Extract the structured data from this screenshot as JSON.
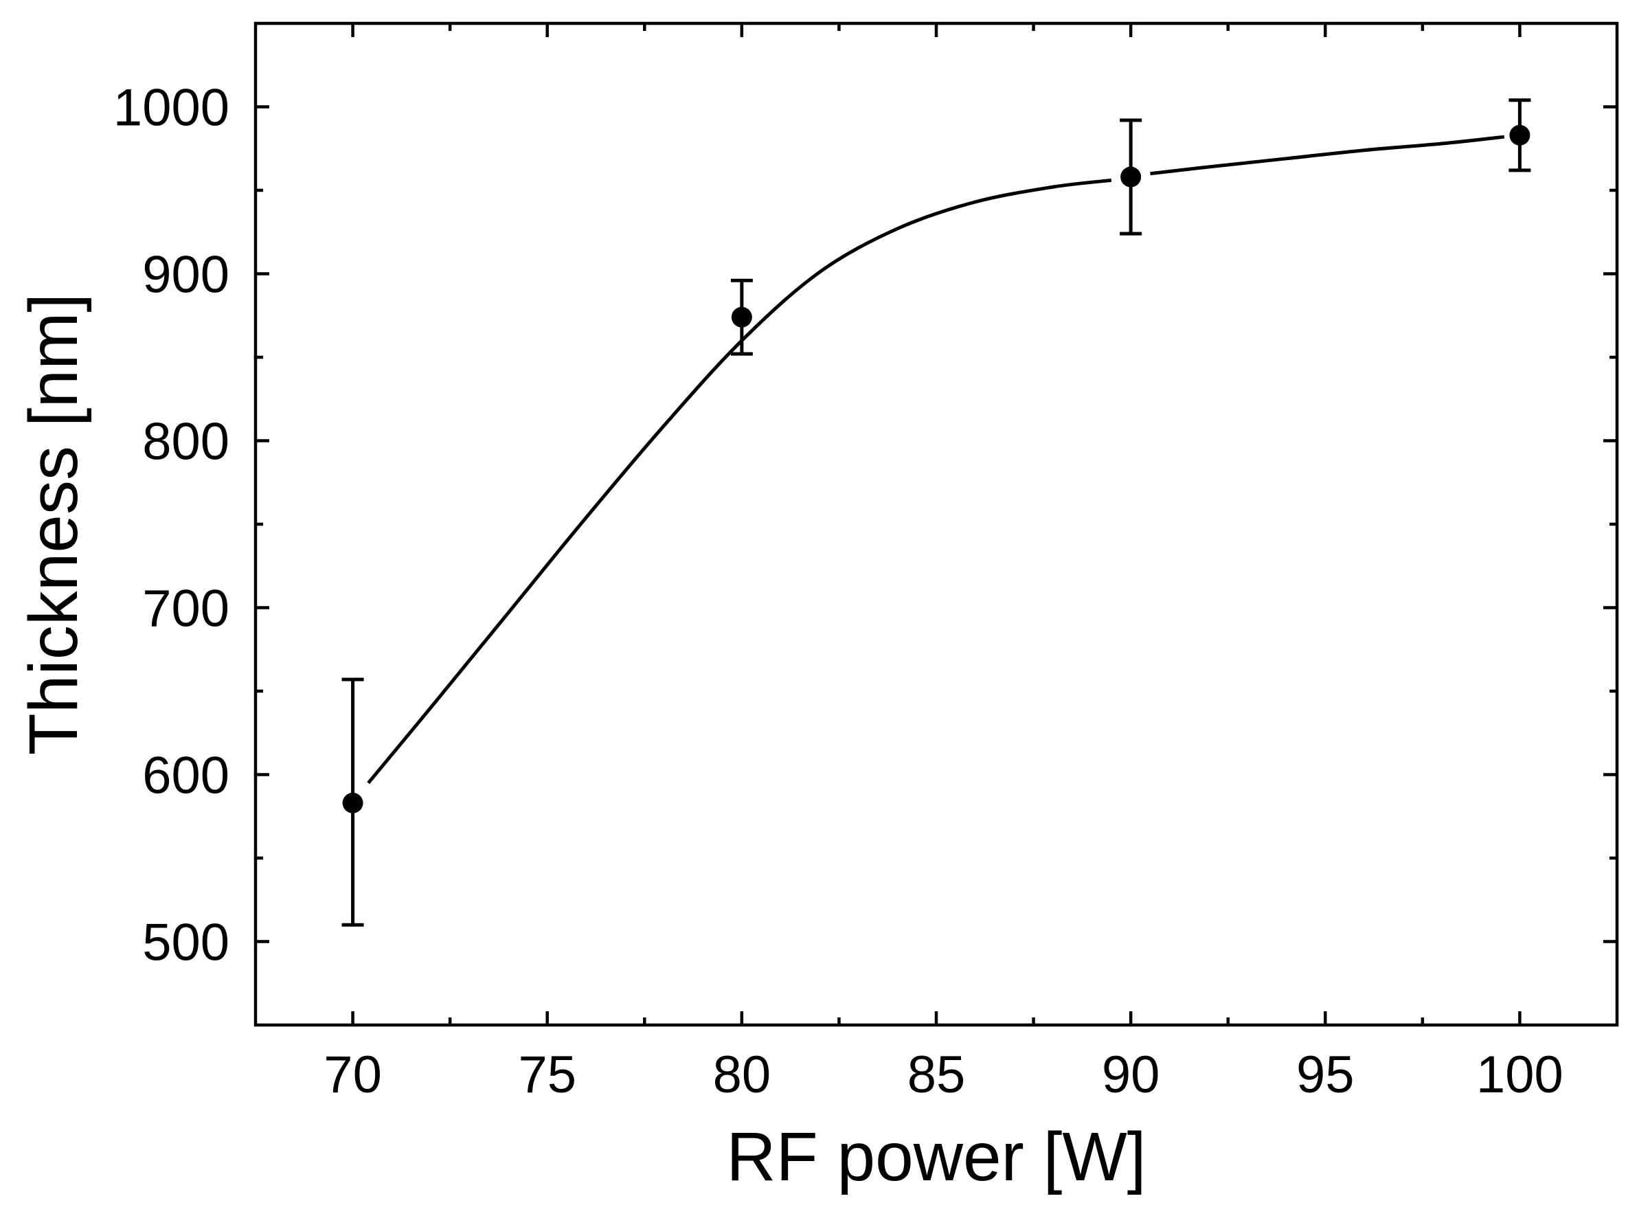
{
  "chart_data": {
    "type": "scatter",
    "title": "",
    "xlabel": "RF power [W]",
    "ylabel": "Thickness [nm]",
    "xlim": [
      67.5,
      102.5
    ],
    "ylim": [
      450,
      1050
    ],
    "x_major_ticks": [
      70,
      75,
      80,
      85,
      90,
      95,
      100
    ],
    "x_minor_ticks": [
      72.5,
      77.5,
      82.5,
      87.5,
      92.5,
      97.5
    ],
    "x_tick_labels": [
      "70",
      "75",
      "80",
      "85",
      "90",
      "95",
      "100"
    ],
    "y_major_ticks": [
      500,
      600,
      700,
      800,
      900,
      1000
    ],
    "y_minor_ticks": [
      550,
      650,
      750,
      850,
      950
    ],
    "y_tick_labels": [
      "500",
      "600",
      "700",
      "800",
      "900",
      "1000"
    ],
    "series": [
      {
        "x": [
          70,
          80,
          90,
          100
        ],
        "y": [
          583,
          874,
          958,
          983
        ],
        "error_upper": [
          657,
          896,
          992,
          1004
        ],
        "error_lower": [
          510,
          852,
          924,
          962
        ]
      }
    ],
    "fit_curve": {
      "x": [
        70.4,
        72,
        74,
        76,
        78,
        80,
        82,
        84,
        86,
        88,
        89.5,
        90.5,
        92,
        94,
        96,
        98,
        99.6
      ],
      "y": [
        595,
        640,
        697,
        754,
        809,
        860,
        901,
        927,
        943,
        952,
        956,
        960,
        964,
        969,
        974,
        978,
        982
      ]
    },
    "grid": false,
    "legend": "none",
    "colors": {
      "marker": "#000000",
      "line": "#000000"
    }
  }
}
